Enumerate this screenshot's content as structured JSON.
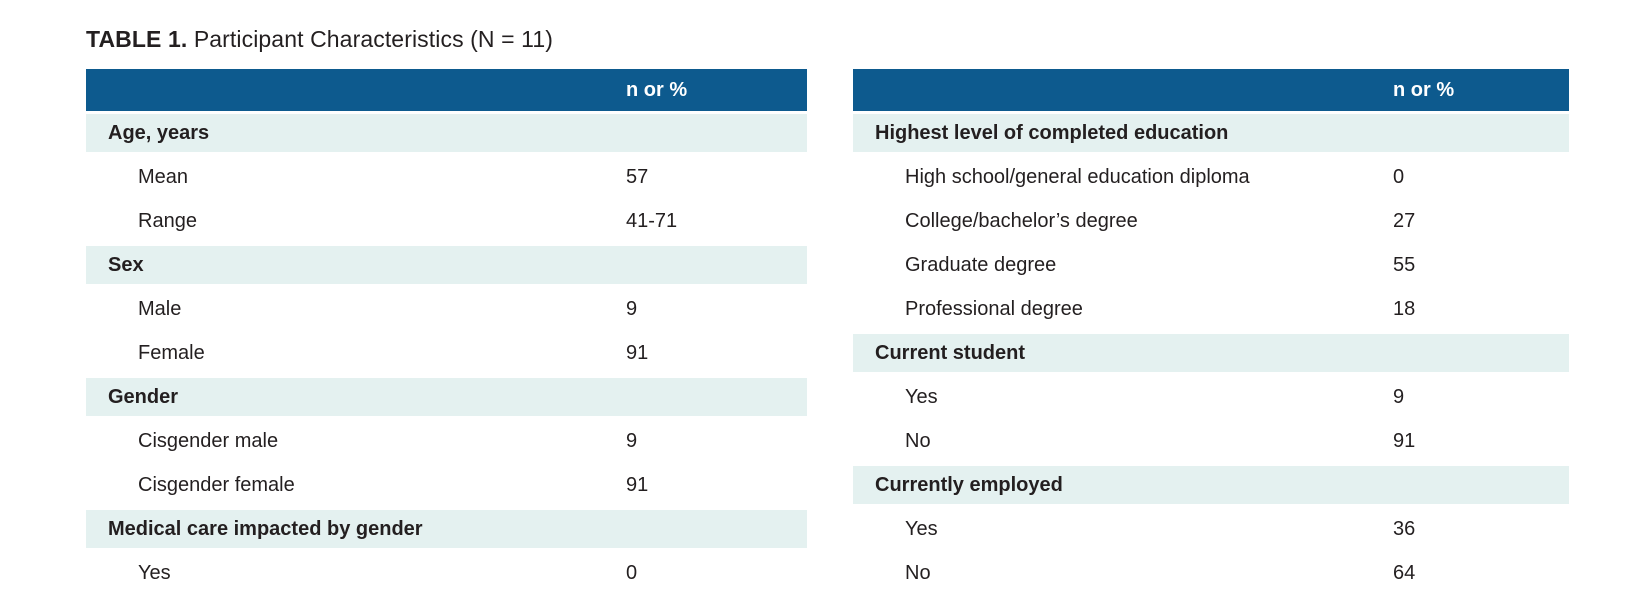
{
  "title": {
    "bold": "TABLE 1.",
    "rest": " Participant Characteristics (N = 11)"
  },
  "colors": {
    "header_bg": "#0d5a8e",
    "section_bg": "#e4f1f0",
    "header_text": "#ffffff",
    "body_text": "#231f20"
  },
  "tables": [
    {
      "value_header": "n or %",
      "rows": [
        {
          "type": "section",
          "label": "Age, years",
          "value": ""
        },
        {
          "type": "item",
          "label": "Mean",
          "value": "57"
        },
        {
          "type": "item",
          "label": "Range",
          "value": "41-71"
        },
        {
          "type": "section",
          "label": "Sex",
          "value": ""
        },
        {
          "type": "item",
          "label": "Male",
          "value": "9"
        },
        {
          "type": "item",
          "label": "Female",
          "value": "91"
        },
        {
          "type": "section",
          "label": "Gender",
          "value": ""
        },
        {
          "type": "item",
          "label": "Cisgender male",
          "value": "9"
        },
        {
          "type": "item",
          "label": "Cisgender female",
          "value": "91"
        },
        {
          "type": "section",
          "label": "Medical care impacted by gender",
          "value": ""
        },
        {
          "type": "item",
          "label": "Yes",
          "value": "0"
        }
      ]
    },
    {
      "value_header": "n or %",
      "rows": [
        {
          "type": "section",
          "label": "Highest level of completed education",
          "value": ""
        },
        {
          "type": "item",
          "label": "High school/general education diploma",
          "value": "0"
        },
        {
          "type": "item",
          "label": "College/bachelor’s degree",
          "value": "27"
        },
        {
          "type": "item",
          "label": "Graduate degree",
          "value": "55"
        },
        {
          "type": "item",
          "label": "Professional degree",
          "value": "18"
        },
        {
          "type": "section",
          "label": "Current student",
          "value": ""
        },
        {
          "type": "item",
          "label": "Yes",
          "value": "9"
        },
        {
          "type": "item",
          "label": "No",
          "value": "91"
        },
        {
          "type": "section",
          "label": "Currently employed",
          "value": ""
        },
        {
          "type": "item",
          "label": "Yes",
          "value": "36"
        },
        {
          "type": "item",
          "label": "No",
          "value": "64"
        }
      ]
    }
  ]
}
